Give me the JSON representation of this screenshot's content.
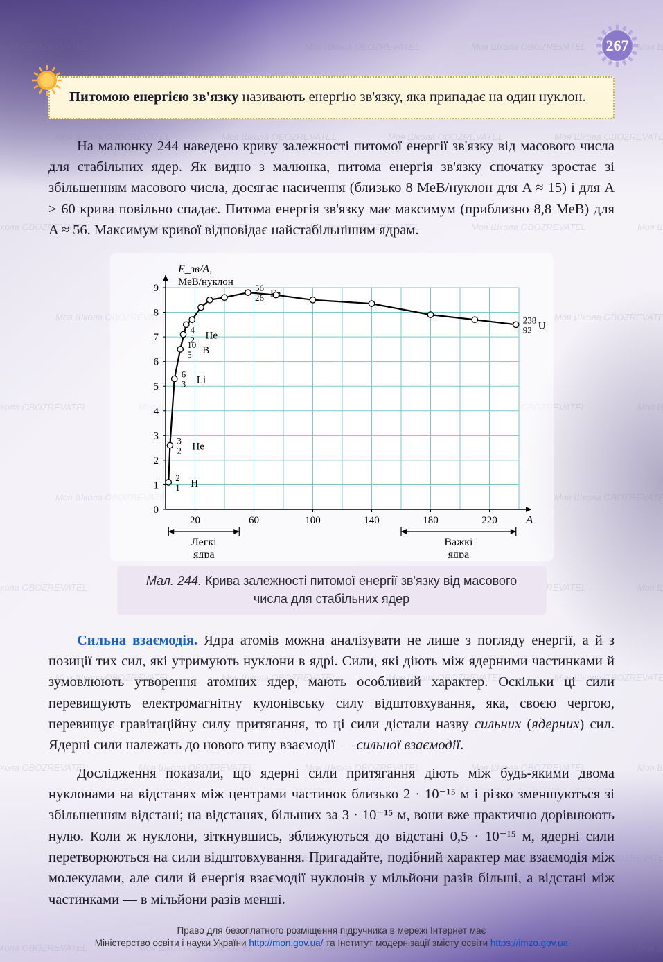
{
  "page_number": "267",
  "definition": {
    "bold_part": "Питомою енергією зв'язку",
    "rest": " називають енергію зв'язку, яка припадає на один нуклон."
  },
  "para1": "На малюнку 244 наведено криву залежності питомої енергії зв'язку від масового числа для стабільних ядер. Як видно з малюнка, питома енергія зв'язку спочатку зростає зі збільшенням масового числа, досягає насичення (близько 8 МеВ/нуклон для A ≈ 15) і для A > 60 крива повільно спадає. Питома енергія зв'язку має максимум (приблизно 8,8 МеВ) для A ≈ 56. Максимум кривої відповідає найстабільнішим ядрам.",
  "chart": {
    "type": "line-scatter",
    "y_axis_label_line1": "E_зв/A,",
    "y_axis_label_line2": "МеВ/нуклон",
    "x_axis_label": "A",
    "xlim": [
      0,
      240
    ],
    "ylim": [
      0,
      9
    ],
    "xticks": [
      20,
      60,
      100,
      140,
      180,
      220
    ],
    "yticks": [
      0,
      1,
      2,
      3,
      4,
      5,
      6,
      7,
      8,
      9
    ],
    "grid_color": "#7ac8d0",
    "background_color": "#ffffff",
    "curve_color": "#000000",
    "marker_fill": "#ffffff",
    "marker_stroke": "#000000",
    "marker_radius": 4.2,
    "curve_points": [
      {
        "x": 2,
        "y": 1.1,
        "label_top": "2",
        "label_bot": "1",
        "elem": "H"
      },
      {
        "x": 3,
        "y": 2.6,
        "label_top": "3",
        "label_bot": "2",
        "elem": "He"
      },
      {
        "x": 6,
        "y": 5.3,
        "label_top": "6",
        "label_bot": "3",
        "elem": "Li"
      },
      {
        "x": 10,
        "y": 6.5,
        "label_top": "10",
        "label_bot": "5",
        "elem": "B"
      },
      {
        "x": 4,
        "y": 7.1,
        "label_top": "4",
        "label_bot": "2",
        "elem": "He",
        "offset": true
      },
      {
        "x": 14,
        "y": 7.5
      },
      {
        "x": 18,
        "y": 7.7
      },
      {
        "x": 24,
        "y": 8.2
      },
      {
        "x": 30,
        "y": 8.5
      },
      {
        "x": 40,
        "y": 8.6
      },
      {
        "x": 56,
        "y": 8.8,
        "label_top": "56",
        "label_bot": "26",
        "elem": "Fe"
      },
      {
        "x": 75,
        "y": 8.7
      },
      {
        "x": 100,
        "y": 8.5
      },
      {
        "x": 140,
        "y": 8.35
      },
      {
        "x": 180,
        "y": 7.9
      },
      {
        "x": 210,
        "y": 7.7
      },
      {
        "x": 238,
        "y": 7.5,
        "label_top": "238",
        "label_bot": "92",
        "elem": "U"
      }
    ],
    "range_light": {
      "label": "Легкі ядра",
      "from": 2,
      "to": 50
    },
    "range_heavy": {
      "label": "Важкі ядра",
      "from": 160,
      "to": 238
    }
  },
  "caption": {
    "fig_label": "Мал. 244.",
    "text": " Крива залежності питомої енергії зв'язку від масового числа для стабільних ядер"
  },
  "section_heading": "Сильна взаємодія.",
  "para2_rest": " Ядра атомів можна аналізувати не лише з погляду енергії, а й з позиції тих сил, які утримують нуклони в ядрі. Сили, які діють між ядерними частинками й зумовлюють утворення атомних ядер, мають особливий характер. Оскільки ці сили перевищують електромагнітну кулонівську силу відштовхування, яка, своєю чергою, перевищує гравітаційну силу притягання, то ці сили дістали назву ",
  "para2_italic1": "сильних",
  "para2_mid1": " (",
  "para2_italic2": "ядерних",
  "para2_mid2": ") сил. Ядерні сили належать до нового типу взаємодії — ",
  "para2_italic3": "сильної взаємодії",
  "para2_end": ".",
  "para3": "Дослідження показали, що ядерні сили притягання діють між будь-якими двома нуклонами на відстанях між центрами частинок близько 2 · 10⁻¹⁵ м і різко зменшуються зі збільшенням відстані; на відстанях, більших за 3 · 10⁻¹⁵ м, вони вже практично дорівнюють нулю. Коли ж нуклони, зіткнувшись, зближуються до відстані 0,5 · 10⁻¹⁵ м, ядерні сили перетворюються на сили відштовхування. Пригадайте, подібний характер має взаємодія між молекулами, але сили й енергія взаємодії нуклонів у мільйони разів більші, а відстані між частинками — в мільйони разів менші.",
  "footer": {
    "line1": "Право для безоплатного розміщення підручника в мережі Інтернет має",
    "line2_a": "Міністерство освіти і науки України ",
    "link1": "http://mon.gov.ua/",
    "line2_b": " та Інститут модернізації змісту освіти ",
    "link2": "https://imzo.gov.ua"
  },
  "watermark_text": "Моя Школа   OBOZREVATEL"
}
